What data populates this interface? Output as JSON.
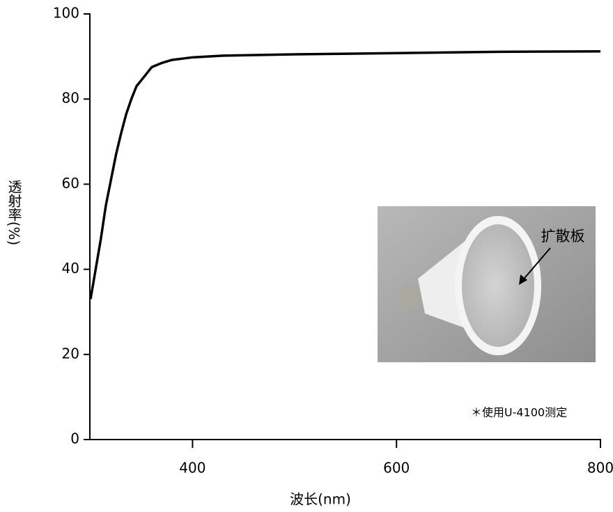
{
  "chart_data": {
    "type": "line",
    "x_label": "波长(nm)",
    "y_label": "透射率(%)",
    "annotation": "＊使用U-4100测定",
    "inset_label": "扩散板",
    "x": [
      300,
      305,
      310,
      315,
      320,
      325,
      330,
      335,
      340,
      345,
      350,
      355,
      360,
      370,
      380,
      400,
      430,
      500,
      600,
      700,
      800
    ],
    "series": [
      {
        "color": "#000000",
        "values": [
          33,
          40,
          47,
          55,
          61,
          67,
          72,
          76.5,
          80,
          83,
          84.5,
          86,
          87.5,
          88.5,
          89.2,
          89.8,
          90.2,
          90.5,
          90.8,
          91.1,
          91.2
        ]
      }
    ],
    "xlim": [
      300,
      800
    ],
    "xticks": [
      400,
      600,
      800
    ],
    "ylim": [
      0,
      100
    ],
    "yticks": [
      0,
      20,
      40,
      60,
      80,
      100
    ]
  }
}
